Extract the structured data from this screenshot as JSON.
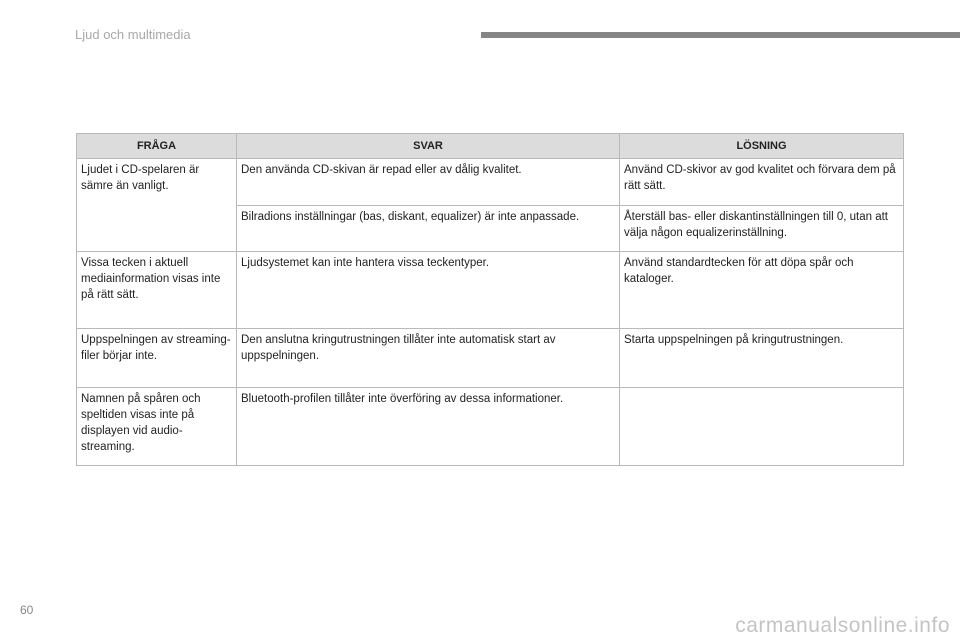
{
  "header": {
    "section_title": "Ljud och multimedia"
  },
  "table": {
    "columns": [
      "FRÅGA",
      "SVAR",
      "LÖSNING"
    ],
    "rows": [
      {
        "question": "Ljudet i CD-spelaren är sämre än vanligt.",
        "answer": "Den använda CD-skivan är repad eller av dålig kvalitet.",
        "solution": "Använd CD-skivor av god kvalitet och förvara dem på rätt sätt."
      },
      {
        "question": "",
        "answer": "Bilradions inställningar (bas, diskant, equalizer) är inte anpassade.",
        "solution": "Återställ bas- eller diskantinställningen till 0, utan att välja någon equalizerinställning."
      },
      {
        "question": "Vissa tecken i aktuell mediainformation visas inte på rätt sätt.",
        "answer": "Ljudsystemet kan inte hantera vissa teckentyper.",
        "solution": "Använd standardtecken för att döpa spår och kataloger."
      },
      {
        "question": "Uppspelningen av streaming-filer börjar inte.",
        "answer": "Den anslutna kringutrustningen tillåter inte automatisk start av uppspelningen.",
        "solution": "Starta uppspelningen på kringutrustningen."
      },
      {
        "question": "Namnen på spåren och speltiden visas inte på displayen vid audio-streaming.",
        "answer": "Bluetooth-profilen tillåter inte överföring av dessa informationer.",
        "solution": ""
      }
    ]
  },
  "footer": {
    "page_number": "60",
    "watermark": "carmanualsonline.info"
  }
}
